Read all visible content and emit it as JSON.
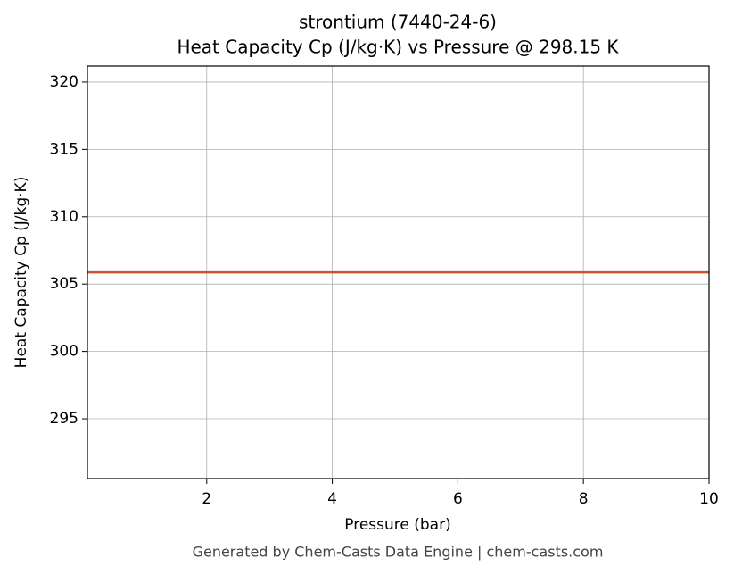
{
  "chart_data": {
    "type": "line",
    "title": "strontium (7440-24-6)",
    "subtitle": "Heat Capacity Cp (J/kg·K) vs Pressure @ 298.15 K",
    "x_label": "Pressure (bar)",
    "y_label": "Heat Capacity Cp (J/kg·K)",
    "footer": "Generated by Chem-Casts Data Engine | chem-casts.com",
    "x": [
      0.1,
      10
    ],
    "series": [
      {
        "name": "Cp",
        "color": "#c8552b",
        "values": [
          305.9,
          305.9
        ]
      }
    ],
    "xlim": [
      0.1,
      10
    ],
    "xticks": [
      2,
      4,
      6,
      8,
      10
    ],
    "ylim": [
      290.56,
      321.19
    ],
    "yticks": [
      295,
      300,
      305,
      310,
      315,
      320
    ],
    "grid": true
  }
}
